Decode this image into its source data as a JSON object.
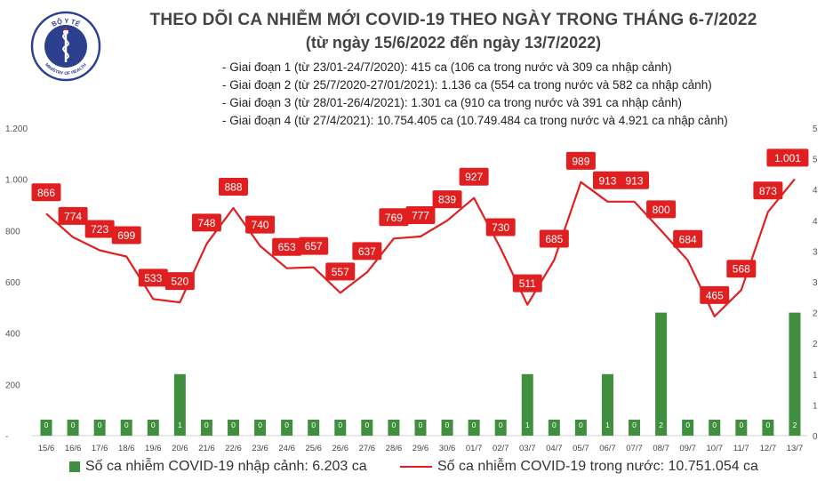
{
  "logo": {
    "top_text": "BỘ Y TẾ",
    "bottom_text": "MINISTRY OF HEALTH",
    "icon": "caduceus-icon",
    "color": "#2d3f8f"
  },
  "title": "THEO DÕI CA NHIỄM MỚI COVID-19 THEO NGÀY TRONG THÁNG 6-7/2022",
  "subtitle": "(từ ngày 15/6/2022 đến ngày 13/7/2022)",
  "phases": [
    "- Giai đoạn 1 (từ 23/01-24/7/2020): 415 ca (106 ca trong nước và 309 ca nhập cảnh)",
    "- Giai đoạn 2 (từ 25/7/2020-27/01/2021): 1.136 ca (554 ca trong nước và 582 ca nhập cảnh)",
    "- Giai đoạn 3 (từ 28/01-26/4/2021): 1.301 ca (910 ca trong nước và 391 ca nhập cảnh)",
    "- Giai đoạn 4 (từ 27/4/2021): 10.754.405 ca (10.749.484 ca trong nước và 4.921 ca nhập cảnh)"
  ],
  "legend": {
    "bar_label": "Số ca nhiễm COVID-19 nhập cảnh: 6.203 ca",
    "line_label": "Số ca nhiễm COVID-19 trong nước: 10.751.054 ca"
  },
  "chart_data": {
    "type": "bar+line",
    "categories": [
      "15/6",
      "16/6",
      "17/6",
      "18/6",
      "19/6",
      "20/6",
      "21/6",
      "22/6",
      "23/6",
      "24/6",
      "25/6",
      "26/6",
      "27/6",
      "28/6",
      "29/6",
      "30/6",
      "01/7",
      "02/7",
      "03/7",
      "04/7",
      "05/7",
      "06/7",
      "07/7",
      "08/7",
      "09/7",
      "10/7",
      "11/7",
      "12/7",
      "13/7"
    ],
    "series": [
      {
        "name": "Số ca nhiễm COVID-19 nhập cảnh: 6.203 ca",
        "type": "bar",
        "axis": "right",
        "color": "#3f8f3f",
        "values": [
          0,
          0,
          0,
          0,
          0,
          1,
          0,
          0,
          0,
          0,
          0,
          0,
          0,
          0,
          0,
          0,
          0,
          0,
          1,
          0,
          0,
          1,
          0,
          2,
          0,
          0,
          0,
          0,
          2
        ],
        "labels": [
          "0",
          "0",
          "0",
          "0",
          "0",
          "1",
          "0",
          "0",
          "0",
          "0",
          "0",
          "0",
          "0",
          "0",
          "0",
          "0",
          "0",
          "0",
          "1",
          "0",
          "0",
          "1",
          "0",
          "2",
          "0",
          "0",
          "0",
          "0",
          "2"
        ]
      },
      {
        "name": "Số ca nhiễm COVID-19 trong nước: 10.751.054 ca",
        "type": "line",
        "axis": "left",
        "color": "#e02020",
        "values": [
          866,
          774,
          723,
          699,
          533,
          520,
          748,
          888,
          740,
          653,
          657,
          557,
          637,
          769,
          777,
          839,
          927,
          730,
          511,
          685,
          989,
          913,
          913,
          800,
          684,
          465,
          568,
          873,
          1001
        ],
        "labels": [
          "866",
          "774",
          "723",
          "699",
          "533",
          "520",
          "748",
          "888",
          "740",
          "653",
          "657",
          "557",
          "637",
          "769",
          "777",
          "839",
          "927",
          "730",
          "511",
          "685",
          "989",
          "913",
          "913",
          "800",
          "684",
          "465",
          "568",
          "873",
          "1.001"
        ]
      }
    ],
    "y_left": {
      "ticks": [
        0,
        200,
        400,
        600,
        800,
        1000,
        1200
      ],
      "tick_labels": [
        "-",
        "200",
        "400",
        "600",
        "800",
        "1.000",
        "1.200"
      ],
      "ylim": [
        0,
        1200
      ]
    },
    "y_right": {
      "ticks": [
        0,
        0.5,
        1,
        1.5,
        2,
        2.5,
        3,
        3.5,
        4,
        4.5,
        5
      ],
      "tick_labels": [
        "0",
        "1",
        "1",
        "2",
        "2",
        "3",
        "3",
        "4",
        "4",
        "5",
        "5"
      ],
      "ylim": [
        0,
        5
      ]
    },
    "grid": false,
    "legend_position": "bottom"
  }
}
